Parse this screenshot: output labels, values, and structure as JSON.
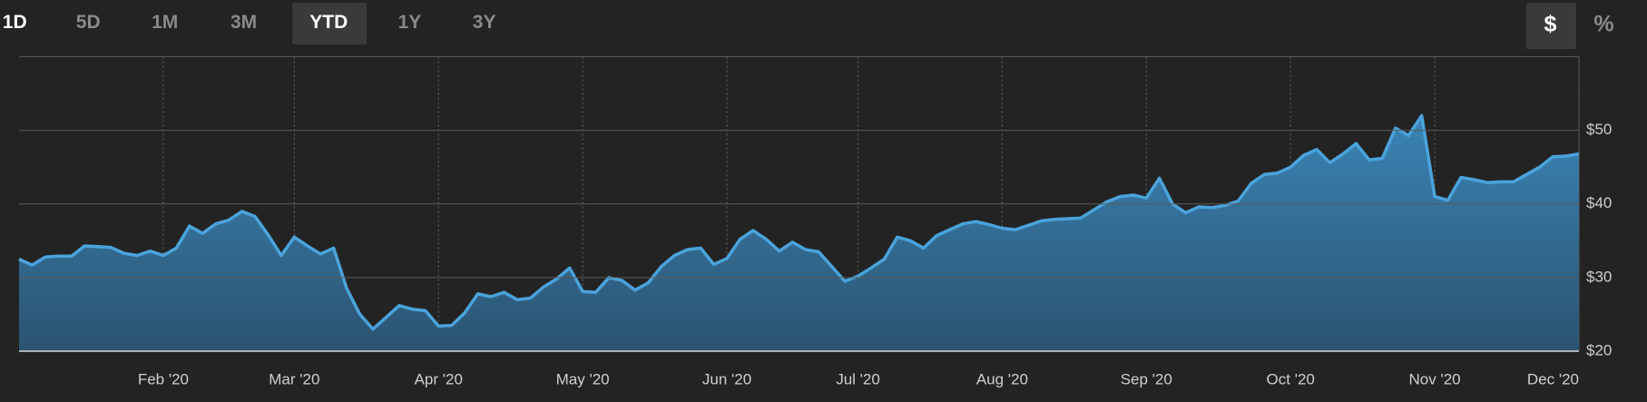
{
  "tabs": {
    "items": [
      "1D",
      "5D",
      "1M",
      "3M",
      "YTD",
      "1Y",
      "3Y"
    ]
  },
  "units": {
    "items": [
      "$",
      "%"
    ]
  },
  "chart_data": {
    "type": "area",
    "categories": [
      null,
      null,
      null,
      null,
      null,
      null,
      null,
      null,
      null,
      null,
      null,
      "Feb '20",
      null,
      null,
      null,
      null,
      null,
      null,
      null,
      null,
      null,
      "Mar '20",
      null,
      null,
      null,
      null,
      null,
      null,
      null,
      null,
      null,
      null,
      "Apr '20",
      null,
      null,
      null,
      null,
      null,
      null,
      null,
      null,
      null,
      null,
      "May '20",
      null,
      null,
      null,
      null,
      null,
      null,
      null,
      null,
      null,
      null,
      "Jun '20",
      null,
      null,
      null,
      null,
      null,
      null,
      null,
      null,
      null,
      "Jul '20",
      null,
      null,
      null,
      null,
      null,
      null,
      null,
      null,
      null,
      null,
      "Aug '20",
      null,
      null,
      null,
      null,
      null,
      null,
      null,
      null,
      null,
      null,
      "Sep '20",
      null,
      null,
      null,
      null,
      null,
      null,
      null,
      null,
      null,
      null,
      "Oct '20",
      null,
      null,
      null,
      null,
      null,
      null,
      null,
      null,
      null,
      null,
      "Nov '20",
      null,
      null,
      null,
      null,
      null,
      null,
      null,
      null,
      null,
      null,
      "Dec '20"
    ],
    "values": [
      32.5,
      31.7,
      32.8,
      32.9,
      32.9,
      34.3,
      34.2,
      34.1,
      33.3,
      33,
      33.6,
      33,
      34,
      37,
      36,
      37.3,
      37.8,
      39,
      38.3,
      35.8,
      33,
      35.5,
      34.3,
      33.2,
      34,
      28.5,
      25,
      23,
      24.6,
      26.2,
      25.7,
      25.5,
      23.4,
      23.5,
      25.2,
      27.8,
      27.4,
      28,
      27,
      27.2,
      28.7,
      29.8,
      31.3,
      28.1,
      28,
      30,
      29.6,
      28.3,
      29.3,
      31.5,
      33,
      33.8,
      34,
      31.8,
      32.6,
      35.2,
      36.4,
      35.2,
      33.6,
      34.8,
      33.8,
      33.5,
      31.5,
      29.5,
      30.2,
      31.3,
      32.5,
      35.5,
      35,
      34,
      35.7,
      36.5,
      37.3,
      37.6,
      37.2,
      36.7,
      36.5,
      37.1,
      37.7,
      37.9,
      38,
      38.1,
      39.2,
      40.3,
      41,
      41.2,
      40.8,
      43.5,
      40,
      38.8,
      39.6,
      39.5,
      39.8,
      40.4,
      42.8,
      44,
      44.2,
      45,
      46.6,
      47.4,
      45.6,
      46.8,
      48.2,
      46,
      46.2,
      50.3,
      49.3,
      52,
      41,
      40.5,
      43.6,
      43.3,
      42.9,
      43,
      43,
      44,
      45,
      46.4,
      46.5,
      46.8
    ],
    "color": "#4aa3dc",
    "ylim": [
      20,
      60
    ],
    "yticks": [
      {
        "value": 20,
        "label": "$20"
      },
      {
        "value": 30,
        "label": "$30"
      },
      {
        "value": 40,
        "label": "$40"
      },
      {
        "value": 50,
        "label": "$50"
      }
    ],
    "grid": true
  }
}
